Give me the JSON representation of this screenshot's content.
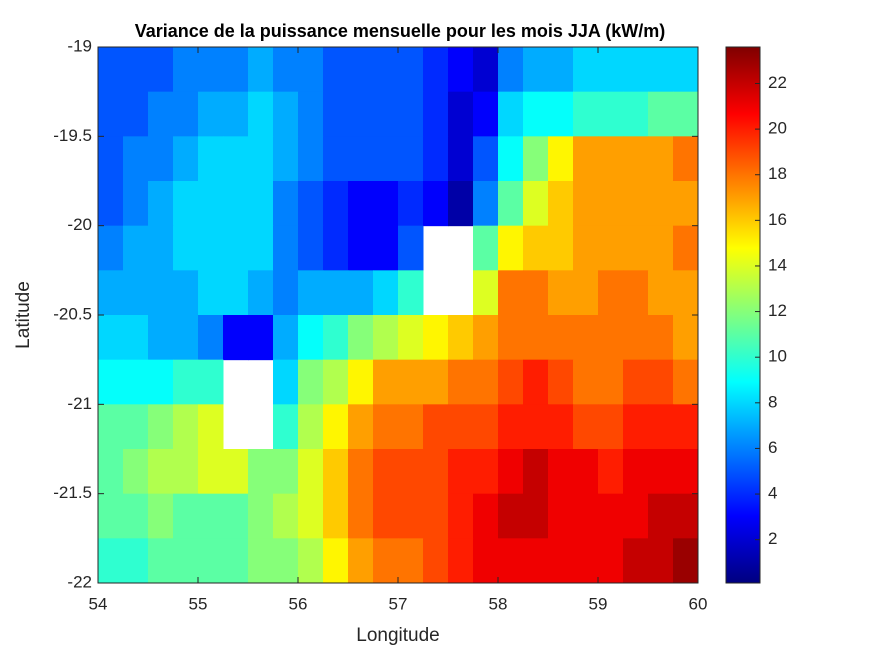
{
  "chart_data": {
    "type": "heatmap",
    "title": "Variance de la puissance mensuelle pour les mois JJA (kW/m)",
    "xlabel": "Longitude",
    "ylabel": "Latitude",
    "xlim": [
      54,
      60
    ],
    "ylim": [
      -22,
      -19
    ],
    "xticks": [
      54,
      55,
      56,
      57,
      58,
      59,
      60
    ],
    "yticks": [
      -19,
      -19.5,
      -20,
      -20.5,
      -21,
      -21.5,
      -22
    ],
    "colormap": "jet",
    "clim": [
      0.1,
      23.6
    ],
    "cticks": [
      2,
      4,
      6,
      8,
      10,
      12,
      14,
      16,
      18,
      20,
      22
    ],
    "values": [
      [
        5,
        5,
        5,
        6,
        6,
        6,
        7,
        6,
        6,
        5,
        5,
        5,
        5,
        4,
        3,
        2,
        6,
        7,
        7,
        8,
        8,
        8,
        8,
        8
      ],
      [
        5,
        5,
        6,
        6,
        7,
        7,
        8,
        7,
        6,
        5,
        5,
        5,
        5,
        4,
        2,
        3,
        8,
        9,
        9,
        10,
        10,
        10,
        11,
        11
      ],
      [
        5,
        6,
        6,
        7,
        8,
        8,
        8,
        7,
        6,
        5,
        5,
        5,
        5,
        4,
        2,
        5,
        9,
        12,
        15,
        17,
        17,
        17,
        17,
        18
      ],
      [
        5,
        6,
        7,
        8,
        8,
        8,
        8,
        6,
        5,
        4,
        3,
        3,
        4,
        3,
        1,
        6,
        11,
        14,
        16,
        17,
        17,
        17,
        17,
        17
      ],
      [
        6,
        7,
        7,
        8,
        8,
        8,
        8,
        6,
        5,
        4,
        3,
        3,
        5,
        null,
        null,
        11,
        15,
        16,
        16,
        17,
        17,
        17,
        17,
        18
      ],
      [
        7,
        7,
        7,
        7,
        8,
        8,
        7,
        6,
        7,
        7,
        7,
        8,
        10,
        null,
        null,
        14,
        18,
        18,
        17,
        17,
        18,
        18,
        17,
        17
      ],
      [
        8,
        8,
        7,
        7,
        6,
        3,
        3,
        7,
        9,
        10,
        12,
        13,
        14,
        15,
        16,
        17,
        18,
        18,
        18,
        18,
        18,
        18,
        18,
        17
      ],
      [
        9,
        9,
        9,
        10,
        10,
        null,
        null,
        8,
        12,
        13,
        15,
        17,
        17,
        17,
        18,
        18,
        19,
        20,
        19,
        18,
        18,
        19,
        19,
        18
      ],
      [
        11,
        11,
        12,
        13,
        14,
        null,
        null,
        10,
        13,
        15,
        17,
        18,
        18,
        19,
        19,
        19,
        20,
        20,
        20,
        19,
        19,
        20,
        20,
        20
      ],
      [
        11,
        12,
        13,
        13,
        14,
        14,
        12,
        12,
        14,
        16,
        18,
        19,
        19,
        19,
        20,
        20,
        21,
        22,
        21,
        21,
        20,
        21,
        21,
        21
      ],
      [
        11,
        11,
        12,
        11,
        11,
        11,
        12,
        13,
        14,
        16,
        18,
        19,
        19,
        19,
        20,
        21,
        22,
        22,
        21,
        21,
        21,
        21,
        22,
        22
      ],
      [
        10,
        10,
        11,
        11,
        11,
        11,
        12,
        12,
        13,
        15,
        17,
        18,
        18,
        19,
        20,
        21,
        21,
        21,
        21,
        21,
        21,
        22,
        22,
        23
      ]
    ]
  }
}
